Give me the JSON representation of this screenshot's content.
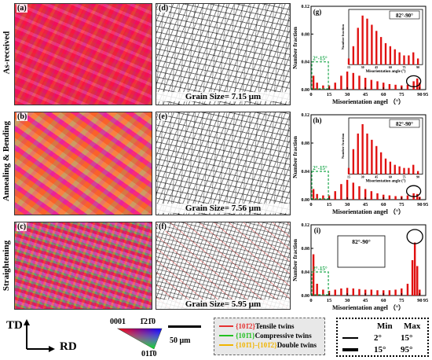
{
  "rows": [
    {
      "label": "As-received",
      "ebsd_panel": "(a)",
      "gb_panel": "(d)",
      "grain_size": "Grain Size= 7.15 μm",
      "chart_panel": "(g)",
      "inset_label": "82°-90°",
      "low_angle_label": "2°-15°"
    },
    {
      "label": "Annealing & Bending",
      "ebsd_panel": "(b)",
      "gb_panel": "(e)",
      "grain_size": "Grain Size= 7.56 μm",
      "chart_panel": "(h)",
      "inset_label": "82°-90°",
      "low_angle_label": "2°-15°"
    },
    {
      "label": "Straightening",
      "ebsd_panel": "(c)",
      "gb_panel": "(f)",
      "grain_size": "Grain Size= 5.95 μm",
      "chart_panel": "(i)",
      "inset_label": "82°-90°",
      "low_angle_label": "2°-15°"
    }
  ],
  "legend": {
    "axis_td": "TD",
    "axis_rd": "RD",
    "ipf_top_left": "0001",
    "ipf_top_right": "1̄21̄0",
    "ipf_bottom": "011̄0",
    "scale_bar": "50 μm",
    "twins": [
      {
        "code": "{101̄2}",
        "name": "Tensile twins",
        "color": "#e53030"
      },
      {
        "code": "{101̄1}",
        "name": "Compressive twins",
        "color": "#22c020"
      },
      {
        "code": "{101̄1}-{101̄2}",
        "name": "Double twins",
        "color": "#f0b400"
      }
    ],
    "minmax": {
      "min_header": "Min",
      "max_header": "Max",
      "rows": [
        {
          "min": "2°",
          "max": "15°"
        },
        {
          "min": "15°",
          "max": "95°"
        }
      ]
    }
  },
  "chart_data": [
    {
      "type": "bar",
      "panel": "(g)",
      "xlabel": "Misorientation angel （°）",
      "ylabel": "Number fraction",
      "xlim": [
        0,
        95
      ],
      "ylim": [
        0,
        0.12
      ],
      "x_ticks": [
        "0",
        "15",
        "30",
        "45",
        "60",
        "75",
        "90",
        "95"
      ],
      "y_ticks": [
        "0.00",
        "0.04",
        "0.08",
        "0.12"
      ],
      "x": [
        2,
        5,
        10,
        15,
        20,
        25,
        30,
        35,
        40,
        45,
        50,
        55,
        60,
        65,
        70,
        75,
        80,
        85,
        88,
        90
      ],
      "values": [
        0.02,
        0.01,
        0.006,
        0.006,
        0.01,
        0.02,
        0.026,
        0.024,
        0.02,
        0.017,
        0.014,
        0.012,
        0.01,
        0.008,
        0.007,
        0.006,
        0.007,
        0.012,
        0.016,
        0.01
      ],
      "inset": {
        "xlabel": "Misorientation angle (°)",
        "ylabel": "Number fraction",
        "xlim": [
          15,
          95
        ],
        "ylim": [
          0,
          0.018
        ],
        "x_ticks": [
          "15",
          "30",
          "45",
          "60",
          "75",
          "90"
        ],
        "y_ticks": [
          "0.000",
          "0.003",
          "0.006",
          "0.009",
          "0.012",
          "0.015",
          "0.018"
        ],
        "x": [
          15,
          20,
          25,
          30,
          35,
          40,
          45,
          50,
          55,
          60,
          65,
          70,
          75,
          80,
          85,
          90
        ],
        "values": [
          0.002,
          0.006,
          0.012,
          0.016,
          0.015,
          0.013,
          0.011,
          0.009,
          0.007,
          0.006,
          0.005,
          0.004,
          0.003,
          0.003,
          0.004,
          0.002
        ]
      }
    },
    {
      "type": "bar",
      "panel": "(h)",
      "xlabel": "Misorientation angel （°）",
      "ylabel": "Number fraction",
      "xlim": [
        0,
        95
      ],
      "ylim": [
        0,
        0.12
      ],
      "x_ticks": [
        "0",
        "15",
        "30",
        "45",
        "60",
        "75",
        "90",
        "95"
      ],
      "y_ticks": [
        "0.00",
        "0.04",
        "0.08",
        "0.12"
      ],
      "x": [
        2,
        5,
        10,
        15,
        20,
        25,
        30,
        35,
        40,
        45,
        50,
        55,
        60,
        65,
        70,
        75,
        80,
        85,
        88,
        90
      ],
      "values": [
        0.015,
        0.008,
        0.006,
        0.006,
        0.012,
        0.022,
        0.028,
        0.024,
        0.019,
        0.015,
        0.012,
        0.009,
        0.007,
        0.006,
        0.005,
        0.005,
        0.006,
        0.009,
        0.008,
        0.004
      ],
      "inset": {
        "xlabel": "Misorientation angle (°)",
        "ylabel": "Number fraction",
        "xlim": [
          15,
          95
        ],
        "ylim": [
          0,
          0.018
        ],
        "x_ticks": [
          "15",
          "30",
          "45",
          "60",
          "75",
          "90"
        ],
        "y_ticks": [
          "0.000",
          "0.003",
          "0.006",
          "0.009",
          "0.012",
          "0.015",
          "0.018"
        ],
        "x": [
          15,
          20,
          25,
          30,
          35,
          40,
          45,
          50,
          55,
          60,
          65,
          70,
          75,
          80,
          85,
          90
        ],
        "values": [
          0.002,
          0.008,
          0.013,
          0.016,
          0.013,
          0.011,
          0.009,
          0.007,
          0.005,
          0.004,
          0.003,
          0.0025,
          0.002,
          0.002,
          0.003,
          0.001
        ]
      }
    },
    {
      "type": "bar",
      "panel": "(i)",
      "xlabel": "Misorientation angel （°）",
      "ylabel": "Number fraction",
      "xlim": [
        0,
        95
      ],
      "ylim": [
        0,
        0.12
      ],
      "x_ticks": [
        "0",
        "15",
        "30",
        "45",
        "60",
        "75",
        "90",
        "95"
      ],
      "y_ticks": [
        "0.00",
        "0.04",
        "0.08",
        "0.12"
      ],
      "x": [
        2,
        5,
        10,
        15,
        20,
        25,
        30,
        35,
        40,
        45,
        50,
        55,
        60,
        65,
        70,
        75,
        80,
        84,
        86,
        88,
        90
      ],
      "values": [
        0.07,
        0.02,
        0.01,
        0.008,
        0.01,
        0.012,
        0.013,
        0.012,
        0.011,
        0.01,
        0.01,
        0.009,
        0.009,
        0.009,
        0.01,
        0.012,
        0.02,
        0.06,
        0.09,
        0.05,
        0.01
      ],
      "inset": null
    }
  ]
}
